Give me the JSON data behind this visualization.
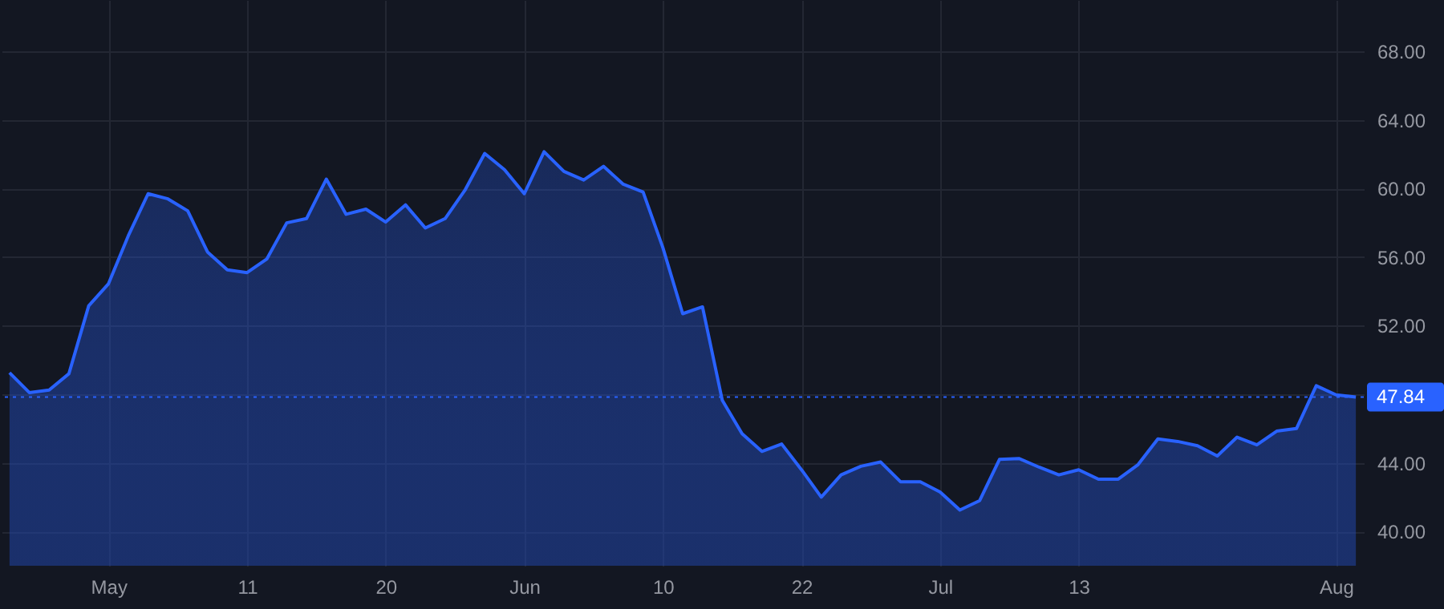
{
  "chart_data": {
    "type": "area",
    "categories": [
      null,
      null,
      null,
      null,
      null,
      "May",
      null,
      null,
      null,
      null,
      null,
      null,
      "11",
      null,
      null,
      null,
      null,
      null,
      null,
      "20",
      null,
      null,
      null,
      null,
      null,
      null,
      "Jun",
      null,
      null,
      null,
      null,
      null,
      null,
      "10",
      null,
      null,
      null,
      null,
      null,
      null,
      "22",
      null,
      null,
      null,
      null,
      null,
      null,
      "Jul",
      null,
      null,
      null,
      null,
      null,
      null,
      "13",
      null,
      null,
      null,
      null,
      null,
      null,
      null,
      null,
      null,
      null,
      null,
      null,
      "Aug",
      null
    ],
    "series": [
      {
        "color": "#2962ff",
        "values": [
          49.26,
          48.1,
          48.25,
          49.2,
          53.16,
          54.45,
          57.25,
          59.7,
          59.4,
          58.7,
          56.3,
          55.26,
          55.1,
          55.9,
          58.0,
          58.25,
          60.55,
          58.5,
          58.8,
          58.05,
          59.05,
          57.7,
          58.25,
          59.9,
          62.05,
          61.1,
          59.7,
          62.15,
          61.0,
          60.5,
          61.3,
          60.25,
          59.8,
          56.55,
          52.7,
          53.1,
          47.65,
          45.7,
          44.67,
          45.1,
          43.6,
          42.0,
          43.3,
          43.8,
          44.05,
          42.9,
          42.9,
          42.3,
          41.25,
          41.8,
          44.2,
          44.25,
          43.75,
          43.3,
          43.6,
          43.05,
          43.05,
          43.9,
          45.4,
          45.25,
          45.0,
          44.4,
          45.5,
          45.05,
          45.85,
          46.0,
          48.5,
          47.97,
          47.84
        ]
      }
    ],
    "ylim": [
      38.0,
      71.0
    ],
    "yticks": [
      {
        "value": 40,
        "label": "40.00"
      },
      {
        "value": 44,
        "label": "44.00"
      },
      {
        "value": 48,
        "label": null
      },
      {
        "value": 52,
        "label": "52.00"
      },
      {
        "value": 56,
        "label": "56.00"
      },
      {
        "value": 60,
        "label": "60.00"
      },
      {
        "value": 64,
        "label": "64.00"
      },
      {
        "value": 68,
        "label": "68.00"
      }
    ],
    "ref_lines": [
      {
        "axis": "y",
        "value": 47.84,
        "label": "47.84",
        "color": "#2962ff",
        "line_style": "dotted"
      }
    ],
    "grid": true
  }
}
